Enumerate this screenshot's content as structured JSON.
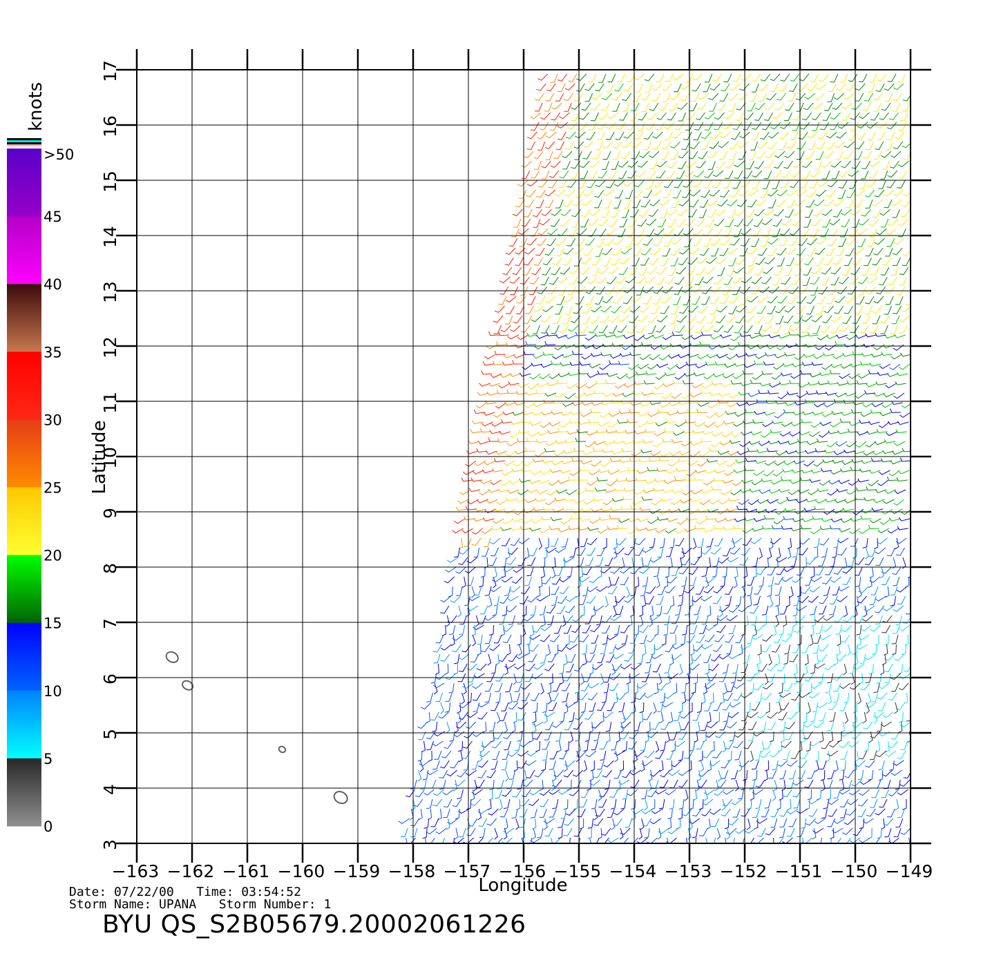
{
  "map": {
    "x_label": "Longitude",
    "y_label": "Latitude",
    "lon_ticks": [
      "-163",
      "-162",
      "-161",
      "-160",
      "-159",
      "-158",
      "-157",
      "-156",
      "-155",
      "-154",
      "-153",
      "-152",
      "-151",
      "-150",
      "-149"
    ],
    "lat_ticks": [
      "3",
      "4",
      "5",
      "6",
      "7",
      "8",
      "9",
      "10",
      "11",
      "12",
      "13",
      "14",
      "15",
      "16",
      "17"
    ],
    "lon_range": [
      -163,
      -149
    ],
    "lat_range": [
      3,
      17
    ],
    "grid": true,
    "islands": [
      {
        "lon": -162.36,
        "lat": 6.37
      },
      {
        "lon": -162.08,
        "lat": 5.86
      },
      {
        "lon": -160.37,
        "lat": 4.7
      },
      {
        "lon": -159.31,
        "lat": 3.83
      }
    ],
    "swath_corners": {
      "top_left_lon": -155.6,
      "top_right_lon": -149,
      "bottom_left_lon": -158.2,
      "bottom_right_lon": -149
    }
  },
  "colorbar": {
    "title": "knots",
    "labels": [
      ">50",
      "45",
      "40",
      "35",
      "30",
      "25",
      "20",
      "15",
      "10",
      "5",
      "0"
    ],
    "segments": [
      {
        "range": "45-50",
        "top": "#5a00c8",
        "bottom": "#9600c8"
      },
      {
        "range": "40-45",
        "top": "#b400c8",
        "bottom": "#ff00ff"
      },
      {
        "range": "35-40",
        "top": "#3c0a0a",
        "bottom": "#c87850"
      },
      {
        "range": "30-35",
        "top": "#ff0000",
        "bottom": "#ff2814"
      },
      {
        "range": "25-30",
        "top": "#e63c14",
        "bottom": "#ff8c00"
      },
      {
        "range": "20-25",
        "top": "#ffc800",
        "bottom": "#ffff32"
      },
      {
        "range": "15-20",
        "top": "#00ff00",
        "bottom": "#006400"
      },
      {
        "range": "10-15",
        "top": "#0000ff",
        "bottom": "#0064ff"
      },
      {
        "range": "5-10",
        "top": "#0082ff",
        "bottom": "#00ffff"
      },
      {
        "range": "0-5",
        "top": "#282828",
        "bottom": "#909090"
      }
    ]
  },
  "meta": {
    "line1": "Date: 07/22/00   Time: 03:54:52",
    "line2": "Storm Name: UPANA   Storm Number: 1",
    "title": "BYU QS_S2B05679.20002061226"
  }
}
